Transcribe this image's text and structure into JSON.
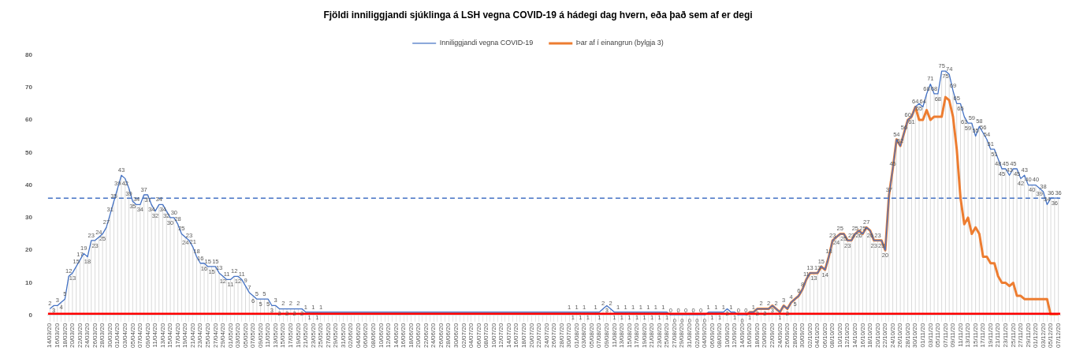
{
  "chart_data": {
    "type": "line",
    "title": "Fjöldi inniliggjandi sjúklinga á LSH vegna COVID-19 á hádegi dag hvern, eða það sem af er degi",
    "categories": [
      "14/03/20",
      null,
      "16/03/20",
      null,
      "18/03/20",
      null,
      "20/03/20",
      null,
      "22/03/20",
      null,
      "24/03/20",
      null,
      "26/03/20",
      null,
      "28/03/20",
      null,
      "30/03/20",
      null,
      "01/04/20",
      null,
      "03/04/20",
      null,
      "05/04/20",
      null,
      "07/04/20",
      null,
      "09/04/20",
      null,
      "11/04/20",
      null,
      "13/04/20",
      null,
      "15/04/20",
      null,
      "17/04/20",
      null,
      "19/04/20",
      null,
      "21/04/20",
      null,
      "23/04/20",
      null,
      "25/04/20",
      null,
      "27/04/20",
      null,
      "29/04/20",
      null,
      "01/05/20",
      null,
      "03/05/20",
      null,
      "05/05/20",
      null,
      "07/05/20",
      null,
      "09/05/20",
      null,
      "11/05/20",
      null,
      "13/05/20",
      null,
      "15/05/20",
      null,
      "17/05/20",
      null,
      "19/05/20",
      null,
      "21/05/20",
      null,
      "23/05/20",
      null,
      "25/05/20",
      null,
      "27/05/20",
      null,
      "29/05/20",
      null,
      "31/05/20",
      null,
      "02/06/20",
      null,
      "04/06/20",
      null,
      "06/06/20",
      null,
      "08/06/20",
      null,
      "10/06/20",
      null,
      "12/06/20",
      null,
      "14/06/20",
      null,
      "16/06/20",
      null,
      "18/06/20",
      null,
      "20/06/20",
      null,
      "22/06/20",
      null,
      "24/06/20",
      null,
      "26/06/20",
      null,
      "28/06/20",
      null,
      "30/06/20",
      null,
      "02/07/20",
      null,
      "04/07/20",
      null,
      "06/07/20",
      null,
      "08/07/20",
      null,
      "10/07/20",
      null,
      "12/07/20",
      null,
      "14/07/20",
      null,
      "16/07/20",
      null,
      "18/07/20",
      null,
      "20/07/20",
      null,
      "22/07/20",
      null,
      "24/07/20",
      null,
      "26/07/20",
      null,
      "28/07/20",
      null,
      "30/07/20",
      null,
      "01/08/20",
      null,
      "03/08/20",
      null,
      "05/08/20",
      null,
      "07/08/20",
      null,
      "09/08/20",
      null,
      "11/08/20",
      null,
      "13/08/20",
      null,
      "15/08/20",
      null,
      "17/08/20",
      null,
      "19/08/20",
      null,
      "21/08/20",
      null,
      "23/08/20",
      null,
      "25/08/20",
      null,
      "27/08/20",
      null,
      "29/08/20",
      null,
      "31/08/20",
      null,
      "02/09/20",
      null,
      "04/09/20",
      null,
      "06/09/20",
      null,
      "08/09/20",
      null,
      "10/09/20",
      null,
      "12/09/20",
      null,
      "14/09/20",
      null,
      "16/09/20",
      null,
      "18/09/20",
      null,
      "20/09/20",
      null,
      "22/09/20",
      null,
      "24/09/20",
      null,
      "26/09/20",
      null,
      "28/09/20",
      null,
      "30/09/20",
      null,
      "02/10/20",
      null,
      "04/10/20",
      null,
      "06/10/20",
      null,
      "08/10/20",
      null,
      "10/10/20",
      null,
      "12/10/20",
      null,
      "14/10/20",
      null,
      "16/10/20",
      null,
      "18/10/20",
      null,
      "20/10/20",
      null,
      "22/10/20",
      null,
      "24/10/20",
      null,
      "26/10/20",
      null,
      "28/10/20",
      null,
      "30/10/20",
      null,
      "01/11/20",
      null,
      "03/11/20",
      null,
      "05/11/20",
      null,
      "07/11/20",
      null,
      "09/11/20",
      null,
      "11/11/20",
      null,
      "13/11/20",
      null,
      "15/11/20",
      null,
      "17/11/20",
      null,
      "19/11/20",
      null,
      "21/11/20",
      null,
      "23/11/20",
      null,
      "25/11/20",
      null,
      "27/11/20",
      null,
      "29/11/20",
      null,
      "01/12/20",
      null,
      "03/12/20",
      null,
      "05/12/20",
      null,
      "07/12/20"
    ],
    "series": [
      {
        "name": "Inniliggjandi vegna COVID-19",
        "color": "#4472c4",
        "values": [
          2,
          3,
          3,
          4,
          5,
          12,
          13,
          15,
          17,
          19,
          18,
          23,
          23,
          24,
          25,
          27,
          31,
          35,
          39,
          43,
          42,
          39,
          35,
          34,
          34,
          37,
          37,
          34,
          32,
          34,
          34,
          32,
          30,
          30,
          28,
          25,
          24,
          23,
          21,
          18,
          16,
          16,
          15,
          15,
          15,
          13,
          12,
          11,
          11,
          12,
          12,
          11,
          9,
          7,
          6,
          5,
          5,
          5,
          5,
          3,
          3,
          2,
          2,
          2,
          2,
          2,
          2,
          2,
          1,
          1,
          1,
          1,
          1,
          null,
          null,
          null,
          null,
          null,
          null,
          null,
          null,
          null,
          null,
          null,
          null,
          null,
          null,
          null,
          null,
          null,
          null,
          null,
          null,
          null,
          null,
          null,
          null,
          null,
          null,
          null,
          null,
          null,
          null,
          null,
          null,
          null,
          null,
          null,
          null,
          null,
          null,
          null,
          null,
          null,
          null,
          null,
          null,
          null,
          null,
          null,
          null,
          null,
          null,
          null,
          null,
          null,
          null,
          null,
          null,
          null,
          null,
          null,
          null,
          null,
          null,
          null,
          null,
          null,
          1,
          1,
          1,
          1,
          1,
          1,
          null,
          1,
          1,
          2,
          3,
          2,
          1,
          1,
          1,
          1,
          1,
          1,
          1,
          1,
          1,
          1,
          1,
          1,
          1,
          1,
          1,
          0,
          0,
          0,
          0,
          0,
          0,
          0,
          0,
          0,
          0,
          1,
          1,
          1,
          1,
          1,
          2,
          1,
          1,
          0,
          0,
          0,
          1,
          1,
          2,
          2,
          2,
          2,
          3,
          2,
          1,
          3,
          2,
          4,
          5,
          6,
          8,
          11,
          13,
          13,
          13,
          15,
          14,
          18,
          23,
          24,
          25,
          25,
          23,
          23,
          25,
          26,
          25,
          27,
          26,
          23,
          23,
          23,
          20,
          37,
          45,
          54,
          52,
          56,
          60,
          61,
          64,
          65,
          64,
          68,
          71,
          68,
          68,
          75,
          75,
          74,
          69,
          65,
          65,
          61,
          59,
          59,
          55,
          58,
          56,
          54,
          51,
          51,
          48,
          45,
          45,
          43,
          45,
          45,
          42,
          43,
          40,
          40,
          40,
          39,
          38,
          34,
          36,
          36,
          36
        ],
        "value_labels": [
          "2",
          "3",
          "3",
          "4",
          "5",
          "12",
          "13",
          "15",
          "17",
          "19",
          "18",
          "23",
          "23",
          "24",
          "25",
          "27",
          "31",
          "35",
          "39",
          "43",
          "42",
          "39",
          "35",
          "34",
          "34",
          "37",
          "37",
          "34",
          "32",
          "34",
          "34",
          "32",
          "30",
          "30",
          "28",
          "25",
          "24",
          "23",
          "21",
          "18",
          "16",
          "16",
          "15",
          "15",
          "15",
          "13",
          "12",
          "11",
          "11",
          "12",
          "12",
          "11",
          "9",
          "7",
          "6",
          "5",
          "5",
          "5",
          "5",
          "3",
          "3",
          "2",
          "2",
          "2",
          "2",
          "2",
          "2",
          "2",
          "1",
          "1",
          "1",
          "1",
          "1",
          null,
          null,
          null,
          null,
          null,
          null,
          null,
          null,
          null,
          null,
          null,
          null,
          null,
          null,
          null,
          null,
          null,
          null,
          null,
          null,
          null,
          null,
          null,
          null,
          null,
          null,
          null,
          null,
          null,
          null,
          null,
          null,
          null,
          null,
          null,
          null,
          null,
          null,
          null,
          null,
          null,
          null,
          null,
          null,
          null,
          null,
          null,
          null,
          null,
          null,
          null,
          null,
          null,
          null,
          null,
          null,
          null,
          null,
          null,
          null,
          null,
          null,
          null,
          null,
          null,
          "1",
          "1",
          "1",
          "1",
          "1",
          "1",
          null,
          "1",
          "1",
          "2",
          "3",
          "2",
          "1",
          "1",
          "1",
          "1",
          "1",
          "1",
          "1",
          "1",
          "1",
          "1",
          "1",
          "1",
          "1",
          "1",
          "1",
          "0",
          "0",
          "0",
          "0",
          "0",
          "0",
          "0",
          "0",
          "0",
          "0",
          "1",
          "1",
          "1",
          "1",
          "1",
          "2",
          "1",
          "1",
          "0",
          "0",
          "0",
          "1",
          "1",
          "2",
          "2",
          "2",
          "2",
          "3",
          "2",
          "1",
          "3",
          "2",
          "4",
          "5",
          "6",
          "8",
          "11",
          "13",
          "13",
          "13",
          "15",
          "14",
          "18",
          "23",
          "24",
          "25",
          "25",
          "23",
          "23",
          "25",
          "26",
          "25",
          "27",
          "26",
          "23",
          "23",
          "23",
          "20",
          "37",
          "45",
          "54",
          "52",
          "56",
          "60",
          "61",
          "64",
          "65",
          "64",
          "68",
          "71",
          "68",
          "68",
          "75",
          "75",
          "74",
          "69",
          "65",
          "65",
          "61",
          "59",
          "59",
          "55",
          "58",
          "56",
          "54",
          "51",
          "51",
          "48",
          "45",
          "45",
          "43",
          "45",
          "45",
          "42",
          "43",
          "40",
          "40",
          "40",
          "39",
          "38",
          "34",
          "36",
          "36",
          "36"
        ]
      },
      {
        "name": "Þar af í einangrun (bylgja 3)",
        "color": "#ed7d31",
        "values": [
          null,
          null,
          null,
          null,
          null,
          null,
          null,
          null,
          null,
          null,
          null,
          null,
          null,
          null,
          null,
          null,
          null,
          null,
          null,
          null,
          null,
          null,
          null,
          null,
          null,
          null,
          null,
          null,
          null,
          null,
          null,
          null,
          null,
          null,
          null,
          null,
          null,
          null,
          null,
          null,
          null,
          null,
          null,
          null,
          null,
          null,
          null,
          null,
          null,
          null,
          null,
          null,
          null,
          null,
          null,
          null,
          null,
          null,
          null,
          null,
          null,
          null,
          null,
          null,
          null,
          null,
          null,
          null,
          null,
          null,
          null,
          null,
          null,
          null,
          null,
          null,
          null,
          null,
          null,
          null,
          null,
          null,
          null,
          null,
          null,
          null,
          null,
          null,
          null,
          null,
          null,
          null,
          null,
          null,
          null,
          null,
          null,
          null,
          null,
          null,
          null,
          null,
          null,
          null,
          null,
          null,
          null,
          null,
          null,
          null,
          null,
          null,
          null,
          null,
          null,
          null,
          null,
          null,
          null,
          null,
          null,
          null,
          null,
          null,
          null,
          null,
          null,
          null,
          null,
          null,
          null,
          null,
          null,
          null,
          null,
          null,
          null,
          null,
          null,
          null,
          null,
          null,
          null,
          null,
          null,
          null,
          null,
          null,
          null,
          null,
          null,
          null,
          null,
          null,
          null,
          null,
          null,
          null,
          null,
          null,
          null,
          null,
          null,
          null,
          null,
          null,
          null,
          null,
          null,
          null,
          null,
          null,
          null,
          null,
          null,
          null,
          null,
          null,
          null,
          null,
          null,
          null,
          null,
          null,
          null,
          0,
          1,
          1,
          2,
          2,
          2,
          2,
          3,
          2,
          1,
          3,
          2,
          4,
          5,
          6,
          8,
          11,
          13,
          13,
          13,
          15,
          14,
          18,
          23,
          24,
          25,
          25,
          23,
          23,
          25,
          26,
          25,
          27,
          26,
          23,
          23,
          23,
          20,
          37,
          45,
          54,
          52,
          56,
          60,
          61,
          64,
          60,
          60,
          63,
          60,
          61,
          61,
          61,
          67,
          66,
          61,
          51,
          36,
          28,
          30,
          25,
          27,
          25,
          18,
          18,
          16,
          16,
          12,
          10,
          10,
          9,
          10,
          6,
          6,
          5,
          5,
          5,
          5,
          5,
          5,
          5,
          0,
          0,
          0
        ]
      }
    ],
    "ylim": [
      0,
      80
    ],
    "yticks": [
      0,
      10,
      20,
      30,
      40,
      50,
      60,
      70,
      80
    ],
    "ref_lines": [
      {
        "axis": "y",
        "value": 36,
        "color": "#4472c4",
        "line_style": "dashed"
      },
      {
        "axis": "y",
        "value": 0.5,
        "color": "#ff0000",
        "line_style": "solid"
      }
    ],
    "grid": "x",
    "legend": "top",
    "marker": "none",
    "line_style": "solid"
  }
}
